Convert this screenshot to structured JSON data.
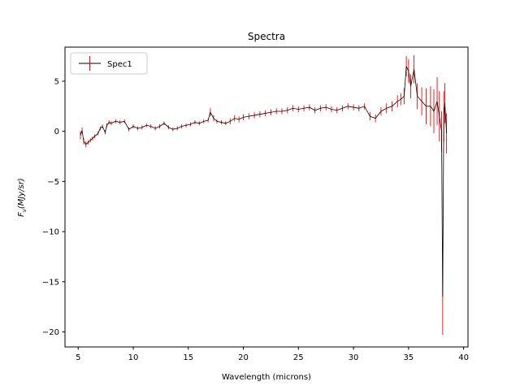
{
  "chart_data": {
    "type": "line",
    "title": "Spectra",
    "xlabel": "Wavelength (microns)",
    "ylabel_parts": {
      "main": "F",
      "sub": "ν",
      "unit": "(MJy/sr)"
    },
    "xlim": [
      3.8,
      40.4
    ],
    "ylim": [
      -21.5,
      8.4
    ],
    "xticks": [
      5,
      10,
      15,
      20,
      25,
      30,
      35,
      40
    ],
    "yticks": [
      5,
      0,
      -5,
      -10,
      -15,
      -20
    ],
    "xtick_labels": [
      "5",
      "10",
      "15",
      "20",
      "25",
      "30",
      "35",
      "40"
    ],
    "ytick_labels": [
      "5",
      "0",
      "−5",
      "−10",
      "−15",
      "−20"
    ],
    "legend": {
      "position": "upper-left",
      "label": "Spec1"
    },
    "series": [
      {
        "name": "Spec1",
        "color": "#000000",
        "error_color": "#ff0000",
        "x": [
          5.2,
          5.35,
          5.5,
          5.7,
          5.9,
          6.1,
          6.3,
          6.5,
          6.8,
          7.0,
          7.2,
          7.45,
          7.6,
          7.8,
          8.0,
          8.4,
          8.8,
          9.2,
          9.6,
          10.0,
          10.4,
          10.8,
          11.2,
          11.6,
          12.0,
          12.4,
          12.8,
          13.2,
          13.6,
          14.0,
          14.4,
          14.8,
          15.2,
          15.6,
          16.0,
          16.4,
          16.8,
          17.0,
          17.3,
          17.6,
          18.0,
          18.4,
          18.8,
          19.2,
          19.6,
          20.0,
          20.5,
          21.0,
          21.5,
          22.0,
          22.5,
          23.0,
          23.5,
          24.0,
          24.5,
          25.0,
          25.5,
          26.0,
          26.5,
          27.0,
          27.5,
          28.0,
          28.5,
          29.0,
          29.5,
          30.0,
          30.5,
          31.0,
          31.5,
          32.0,
          32.5,
          33.0,
          33.5,
          34.0,
          34.3,
          34.6,
          34.8,
          35.0,
          35.2,
          35.5,
          35.8,
          36.2,
          36.6,
          37.0,
          37.3,
          37.6,
          37.8,
          38.0,
          38.1,
          38.2,
          38.3,
          38.45
        ],
        "y": [
          -0.4,
          0.1,
          -1.0,
          -1.3,
          -1.1,
          -0.9,
          -0.7,
          -0.5,
          -0.2,
          0.3,
          0.5,
          -0.1,
          0.6,
          0.9,
          0.8,
          1.0,
          0.9,
          1.0,
          0.2,
          0.5,
          0.3,
          0.4,
          0.6,
          0.5,
          0.3,
          0.5,
          0.8,
          0.4,
          0.2,
          0.3,
          0.5,
          0.6,
          0.7,
          0.9,
          0.8,
          1.0,
          1.1,
          1.9,
          1.3,
          1.0,
          0.9,
          0.8,
          1.0,
          1.3,
          1.2,
          1.4,
          1.5,
          1.6,
          1.7,
          1.8,
          1.9,
          2.0,
          2.0,
          2.1,
          2.3,
          2.2,
          2.3,
          2.4,
          2.1,
          2.3,
          2.4,
          2.2,
          2.1,
          2.3,
          2.5,
          2.4,
          2.3,
          2.5,
          1.5,
          1.3,
          2.0,
          2.3,
          2.5,
          3.0,
          3.2,
          3.5,
          6.5,
          6.0,
          4.5,
          6.2,
          3.5,
          3.0,
          2.5,
          2.5,
          2.0,
          3.0,
          1.5,
          0.0,
          -16.5,
          1.5,
          2.8,
          -0.2
        ],
        "yerr": [
          0.4,
          0.3,
          0.3,
          0.3,
          0.2,
          0.2,
          0.2,
          0.2,
          0.2,
          0.2,
          0.2,
          0.2,
          0.2,
          0.2,
          0.2,
          0.2,
          0.2,
          0.2,
          0.2,
          0.2,
          0.2,
          0.2,
          0.2,
          0.2,
          0.2,
          0.2,
          0.2,
          0.2,
          0.2,
          0.2,
          0.2,
          0.2,
          0.2,
          0.2,
          0.2,
          0.2,
          0.2,
          0.4,
          0.3,
          0.2,
          0.2,
          0.2,
          0.3,
          0.3,
          0.3,
          0.3,
          0.3,
          0.3,
          0.3,
          0.3,
          0.3,
          0.3,
          0.3,
          0.3,
          0.3,
          0.3,
          0.3,
          0.3,
          0.3,
          0.3,
          0.3,
          0.3,
          0.3,
          0.3,
          0.3,
          0.3,
          0.3,
          0.3,
          0.4,
          0.4,
          0.4,
          0.5,
          0.5,
          0.6,
          0.6,
          0.8,
          1.0,
          1.2,
          1.2,
          1.4,
          1.3,
          1.4,
          1.8,
          2.0,
          2.2,
          2.4,
          2.5,
          2.0,
          3.8,
          2.5,
          2.0,
          2.0
        ]
      }
    ]
  }
}
